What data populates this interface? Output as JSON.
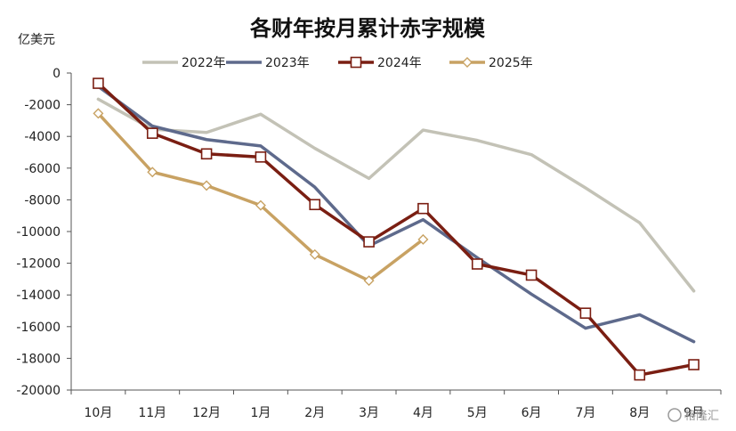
{
  "chart_data": {
    "type": "line",
    "title": "各财年按月累计赤字规模",
    "ylabel": "亿美元",
    "xlabel": "",
    "ylim": [
      -20000,
      0
    ],
    "yticks": [
      0,
      -2000,
      -4000,
      -6000,
      -8000,
      -10000,
      -12000,
      -14000,
      -16000,
      -18000,
      -20000
    ],
    "grid": false,
    "legend_position": "top",
    "categories": [
      "10月",
      "11月",
      "12月",
      "1月",
      "2月",
      "3月",
      "4月",
      "5月",
      "6月",
      "7月",
      "8月",
      "9月"
    ],
    "series": [
      {
        "name": "2022年",
        "color": "#c3c2b6",
        "marker": "none",
        "values": [
          -1650,
          -3550,
          -3750,
          -2600,
          -4750,
          -6650,
          -3600,
          -4250,
          -5150,
          -7250,
          -9450,
          -13750
        ]
      },
      {
        "name": "2023年",
        "color": "#5e6a8c",
        "marker": "none",
        "values": [
          -850,
          -3350,
          -4200,
          -4600,
          -7200,
          -10900,
          -9250,
          -11650,
          -13950,
          -16100,
          -15250,
          -16950
        ]
      },
      {
        "name": "2024年",
        "color": "#7a1e12",
        "marker": "square",
        "values": [
          -650,
          -3800,
          -5100,
          -5300,
          -8300,
          -10650,
          -8550,
          -12050,
          -12750,
          -15150,
          -19050,
          -18400
        ]
      },
      {
        "name": "2025年",
        "color": "#c8a263",
        "marker": "diamond",
        "values": [
          -2550,
          -6250,
          -7100,
          -8350,
          -11450,
          -13100,
          -10500,
          null,
          null,
          null,
          null,
          null
        ]
      }
    ]
  },
  "watermark": "格隆汇"
}
